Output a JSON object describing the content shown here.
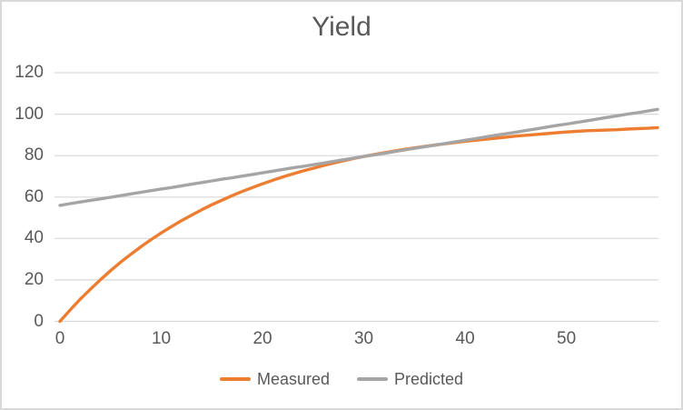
{
  "chart_data": {
    "type": "line",
    "title": "Yield",
    "x_start": 0,
    "x_step": 1,
    "xlim": [
      0,
      59
    ],
    "ylim": [
      0,
      120
    ],
    "x_ticks": [
      "0",
      "10",
      "20",
      "30",
      "40",
      "50"
    ],
    "y_ticks": [
      "0",
      "20",
      "40",
      "60",
      "80",
      "100",
      "120"
    ],
    "grid": "horizontal-only",
    "legend_position": "bottom-center",
    "gridline_color": "#d9d9d9",
    "axis_text_color": "#595959",
    "title_color": "#595959",
    "background_color": "#ffffff",
    "border_color": "#d9d9d9",
    "series": [
      {
        "name": "Measured",
        "color": "#ED7D31",
        "values": [
          0.0,
          5.5,
          10.7,
          15.5,
          20.1,
          24.5,
          28.6,
          32.4,
          36.0,
          39.5,
          42.7,
          45.7,
          48.6,
          51.3,
          53.9,
          56.3,
          58.5,
          60.7,
          62.7,
          64.6,
          66.4,
          68.1,
          69.7,
          71.2,
          72.6,
          73.9,
          75.2,
          76.4,
          77.5,
          78.6,
          79.6,
          80.5,
          81.4,
          82.2,
          83.0,
          83.7,
          84.4,
          85.1,
          85.7,
          86.3,
          86.9,
          87.4,
          87.9,
          88.4,
          88.9,
          89.4,
          89.8,
          90.2,
          90.6,
          91.0,
          91.4,
          91.7,
          92.0,
          92.2,
          92.3,
          92.5,
          92.8,
          93.0,
          93.2,
          93.5
        ]
      },
      {
        "name": "Predicted",
        "color": "#A5A5A5",
        "values": [
          56.0,
          56.8,
          57.6,
          58.4,
          59.1,
          59.9,
          60.7,
          61.5,
          62.3,
          63.1,
          63.9,
          64.6,
          65.4,
          66.2,
          67.0,
          67.8,
          68.6,
          69.3,
          70.1,
          70.9,
          71.7,
          72.5,
          73.3,
          74.1,
          74.8,
          75.6,
          76.4,
          77.2,
          78.0,
          78.8,
          79.6,
          80.3,
          81.1,
          81.9,
          82.7,
          83.5,
          84.3,
          85.0,
          85.8,
          86.6,
          87.4,
          88.2,
          89.0,
          89.8,
          90.5,
          91.3,
          92.1,
          92.9,
          93.7,
          94.5,
          95.2,
          96.0,
          96.8,
          97.6,
          98.4,
          99.2,
          100.0,
          100.7,
          101.5,
          102.3
        ]
      }
    ]
  }
}
